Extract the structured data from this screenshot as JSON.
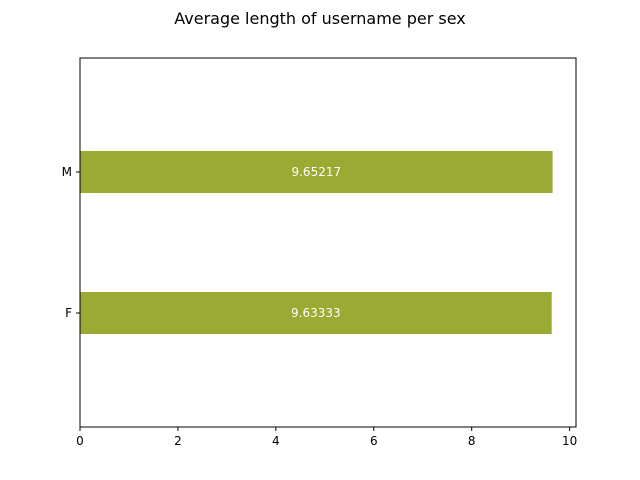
{
  "chart_data": {
    "type": "bar",
    "orientation": "horizontal",
    "title": "Average length of username per sex",
    "xlabel": "",
    "ylabel": "",
    "categories": [
      "M",
      "F"
    ],
    "values": [
      9.65217,
      9.63333
    ],
    "data_labels": [
      "9.65217",
      "9.63333"
    ],
    "xlim": [
      0,
      10.13
    ],
    "xticks": [
      0,
      2,
      4,
      6,
      8,
      10
    ],
    "grid": false,
    "legend": "none",
    "bar_color": "#9aaa33"
  }
}
